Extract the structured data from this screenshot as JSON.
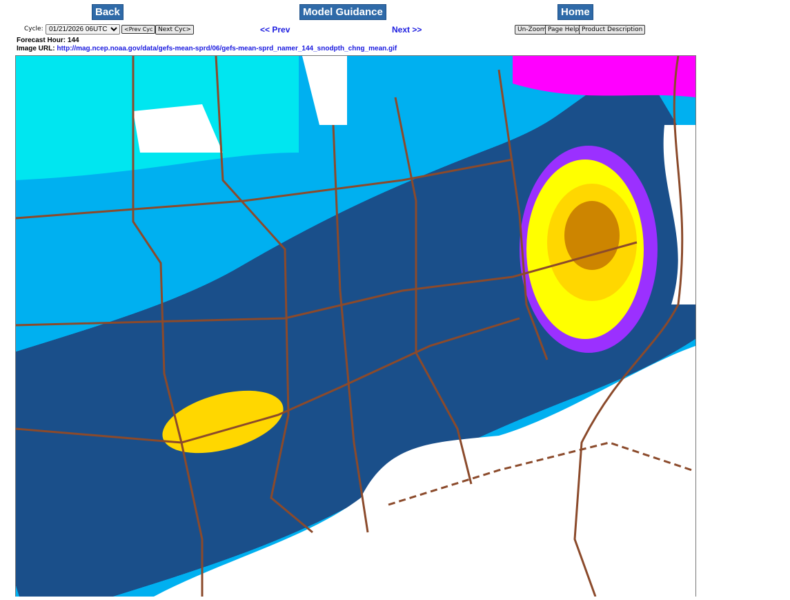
{
  "nav": {
    "back": "Back",
    "model_guidance": "Model Guidance",
    "home": "Home",
    "prev": "<< Prev",
    "next": "Next >>"
  },
  "cycle": {
    "label": "Cycle:",
    "selected": "01/21/2026 06UTC",
    "prev_cyc": "<Prev Cyc",
    "next_cyc": "Next Cyc>"
  },
  "tools": {
    "unzoom": "Un-Zoom",
    "page_help": "Page Help",
    "product_description": "Product Description"
  },
  "info": {
    "forecast_hour_label": "Forecast Hour:",
    "forecast_hour": "144",
    "image_url_label": "Image URL:",
    "image_url": "http://mag.ncep.noaa.gov/data/gefs-mean-sprd/06/gefs-mean-sprd_namer_144_snodpth_chng_mean.gif"
  },
  "map": {
    "field": "snow depth change mean",
    "colors": [
      "#ffffff",
      "#00e6f0",
      "#00b0f0",
      "#1a4f8a",
      "#008000",
      "#00c000",
      "#00ff00",
      "#ff00ff",
      "#9b30ff",
      "#ffff00",
      "#ffd700",
      "#cd8500"
    ],
    "boundary_color": "#8b4a2b"
  }
}
